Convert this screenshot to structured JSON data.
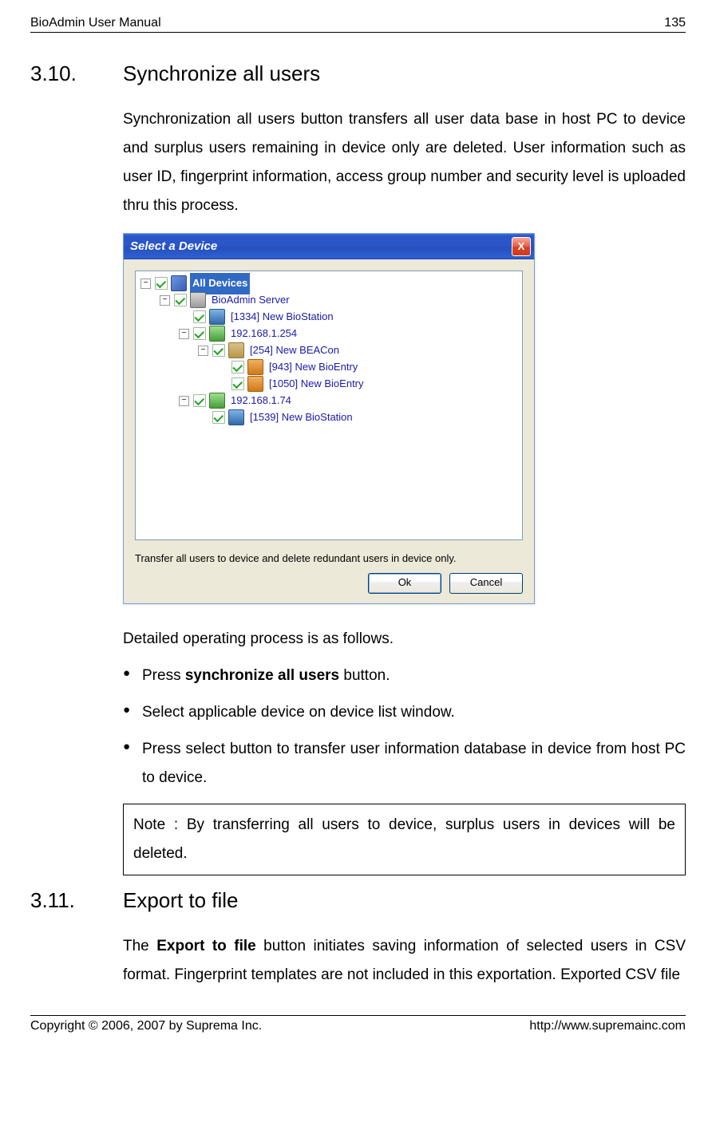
{
  "header": {
    "title": "BioAdmin User Manual",
    "page_number": "135"
  },
  "section1": {
    "number": "3.10.",
    "title": "Synchronize all users",
    "intro": "Synchronization all users button transfers all user data base in host PC to device and surplus users remaining in device only are deleted. User information such as user ID, fingerprint information, access group number and security level is uploaded thru this process.",
    "after_dialog": "Detailed operating process is as follows.",
    "bullet1_prefix": "Press ",
    "bullet1_bold": "synchronize all users",
    "bullet1_suffix": " button.",
    "bullet2": "Select applicable device on device list window.",
    "bullet3": "Press select button to transfer user information database in device from host PC to device.",
    "note": "Note : By transferring all users to device, surplus users in devices will be deleted."
  },
  "dialog": {
    "title": "Select a Device",
    "close_label": "X",
    "tree": {
      "root": "All Devices",
      "server": "BioAdmin Server",
      "station1": "[1334] New BioStation",
      "net1": "192.168.1.254",
      "beacon": "[254] New BEACon",
      "entry1": "[943] New BioEntry",
      "entry2": "[1050] New BioEntry",
      "net2": "192.168.1.74",
      "station2": "[1539] New BioStation"
    },
    "message": "Transfer all users to device and delete redundant users in device only.",
    "ok": "Ok",
    "cancel": "Cancel"
  },
  "section2": {
    "number": "3.11.",
    "title": "Export to file",
    "para_prefix": "The ",
    "para_bold": "Export to file",
    "para_suffix": " button initiates saving information of selected users in CSV format. Fingerprint templates are not included in this exportation. Exported CSV file"
  },
  "footer": {
    "copyright": "Copyright © 2006, 2007 by Suprema Inc.",
    "url": "http://www.supremainc.com"
  },
  "colors": {
    "titlebar_gradient_top": "#3f76e0",
    "titlebar_gradient_bottom": "#1a3a9a",
    "close_red": "#d34425",
    "dialog_face": "#ece9d8",
    "tree_text": "#1a1aaa",
    "selection_bg": "#316ac5",
    "check_green": "#21a121",
    "button_border": "#003c74"
  }
}
